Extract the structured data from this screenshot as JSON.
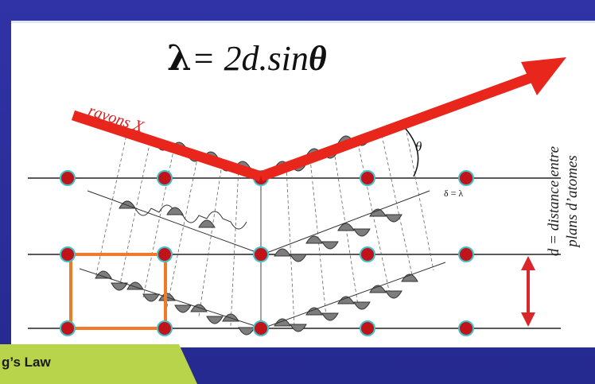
{
  "formula": {
    "lambda": "λ",
    "rest": "= 2d.sin",
    "theta": "θ"
  },
  "ray_label": "rayons X",
  "angle_label": "θ",
  "path_difference_label": "δ = λ",
  "spacing_label": {
    "line1": "d = distance entre",
    "line2": "plans d’atomes"
  },
  "badge": {
    "text": "g’s Law"
  },
  "colors": {
    "background": "#2b2f9a",
    "ray": "#e8261c",
    "atom": "#c0141b",
    "atom_ring": "#3fc1c9",
    "unit_cell": "#f07a28",
    "arrow": "#d9262a",
    "badge": "#b8d44a"
  }
}
